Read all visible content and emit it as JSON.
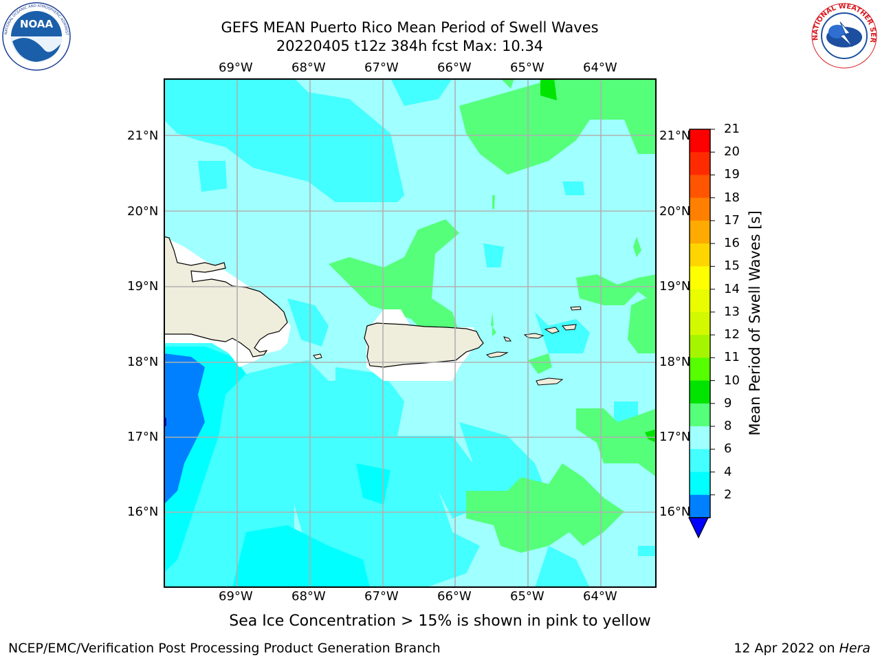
{
  "header": {
    "title_line1": "GEFS MEAN Puerto Rico Mean Period of Swell Waves",
    "title_line2": "20220405 t12z 384h fcst   Max: 10.34"
  },
  "logos": {
    "left": "NOAA",
    "right": "NATIONAL WEATHER SERVICE",
    "left_ring": "NATIONAL OCEANIC AND ATMOSPHERIC ADMINISTRATION · U.S. DEPARTMENT OF COMMERCE"
  },
  "map": {
    "lon_labels": [
      "69°W",
      "68°W",
      "67°W",
      "66°W",
      "65°W",
      "64°W"
    ],
    "lat_labels": [
      "21°N",
      "20°N",
      "19°N",
      "18°N",
      "17°N",
      "16°N"
    ],
    "colors": {
      "land": "#efeddc",
      "field_cyan": "#00ffff",
      "field_lightcyan": "#43ffff",
      "field_palecyan": "#a0ffff",
      "field_green": "#55ff7a",
      "field_deepgreen": "#00e400",
      "field_blue": "#0080ff",
      "field_darkblue": "#0000ff"
    }
  },
  "colorbar": {
    "label": "Mean Period of Swell Waves [s]",
    "ticks": [
      "21",
      "20",
      "19",
      "18",
      "17",
      "16",
      "15",
      "14",
      "13",
      "12",
      "11",
      "10",
      "9",
      "8",
      "6",
      "4",
      "2"
    ],
    "colors": [
      "#ff0000",
      "#ff2b00",
      "#ff5500",
      "#ff8000",
      "#ffaa00",
      "#ffd500",
      "#ffff00",
      "#e9fc00",
      "#d3f900",
      "#a6f500",
      "#55ff00",
      "#00e400",
      "#55ff7a",
      "#a0ffff",
      "#43ffff",
      "#00ffff",
      "#0080ff"
    ],
    "under_color": "#0000ff"
  },
  "note": "Sea Ice Concentration > 15% is shown in pink to yellow",
  "footer": {
    "left": "NCEP/EMC/Verification Post Processing Product Generation Branch",
    "date": "12 Apr 2022 on ",
    "machine": "Hera"
  }
}
